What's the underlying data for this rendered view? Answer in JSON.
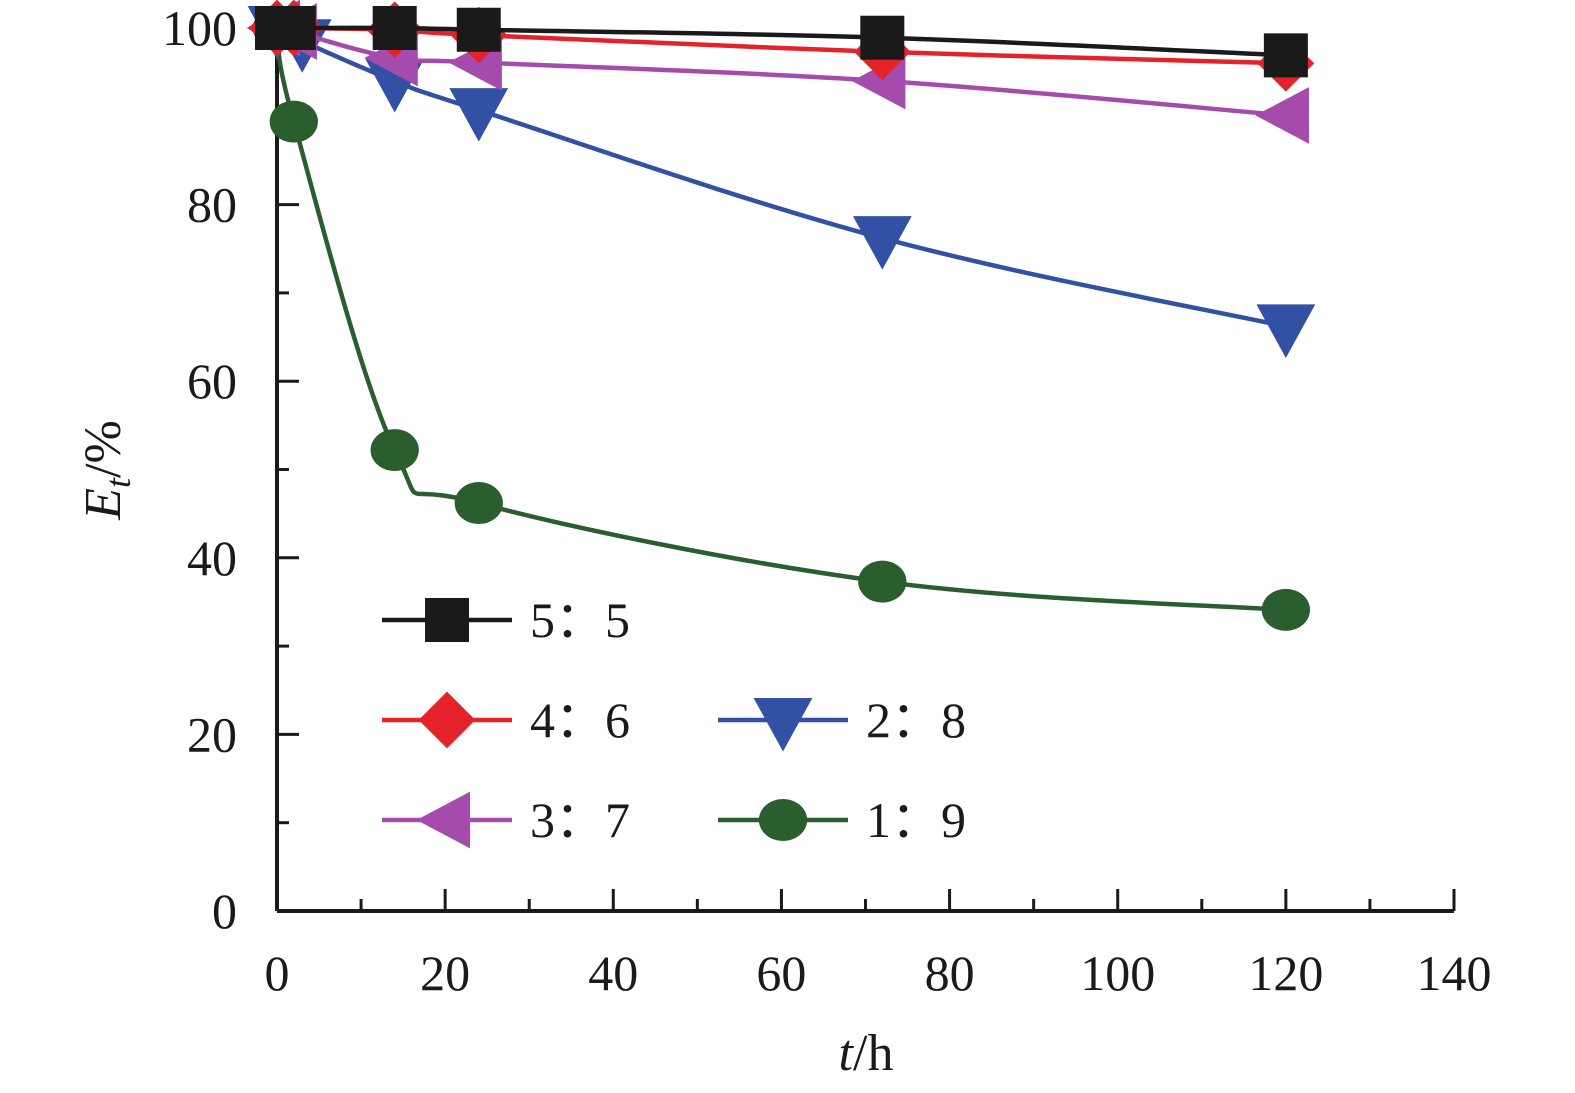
{
  "chart_data": {
    "type": "line",
    "xlabel": "t/h",
    "ylabel": "Et/%",
    "xlabel_parts": {
      "var": "t",
      "unit": "/h"
    },
    "ylabel_parts": {
      "var": "E",
      "sub": "t",
      "unit": "/%"
    },
    "xlim": [
      0,
      140
    ],
    "ylim": [
      0,
      100
    ],
    "x_ticks": [
      0,
      20,
      40,
      60,
      80,
      100,
      120,
      140
    ],
    "y_ticks": [
      0,
      20,
      40,
      60,
      80,
      100
    ],
    "x_tick_labels": [
      "0",
      "20",
      "40",
      "60",
      "80",
      "100",
      "120",
      "140"
    ],
    "y_tick_labels": [
      "0",
      "20",
      "40",
      "60",
      "80",
      "100"
    ],
    "grid": false,
    "legend_position": "lower-left",
    "series": [
      {
        "name": "5：5",
        "color": "#1a1a1a",
        "marker": "square",
        "x": [
          0,
          2,
          14,
          24,
          72,
          120
        ],
        "y": [
          100,
          100,
          100,
          99.8,
          98.9,
          96.9
        ]
      },
      {
        "name": "4：6",
        "color": "#e32329",
        "marker": "diamond",
        "x": [
          0,
          2,
          14,
          24,
          72,
          120
        ],
        "y": [
          100,
          100,
          99.8,
          99.2,
          97.3,
          96.0
        ]
      },
      {
        "name": "3：7",
        "color": "#a54bad",
        "marker": "triangle-left",
        "x": [
          0,
          2,
          14,
          24,
          72,
          120
        ],
        "y": [
          100,
          99.6,
          96.6,
          96.1,
          94.0,
          90.1
        ]
      },
      {
        "name": "2：8",
        "color": "#3251a5",
        "marker": "triangle-down",
        "x": [
          0,
          3,
          14,
          24,
          72,
          120
        ],
        "y": [
          100,
          98.5,
          94.0,
          90.7,
          76.2,
          66.2
        ]
      },
      {
        "name": "1：9",
        "color": "#2a5e2e",
        "marker": "circle",
        "x": [
          0,
          2,
          14,
          24,
          72,
          120
        ],
        "y": [
          100,
          89.4,
          52.2,
          46.2,
          37.3,
          34.1
        ]
      }
    ]
  }
}
